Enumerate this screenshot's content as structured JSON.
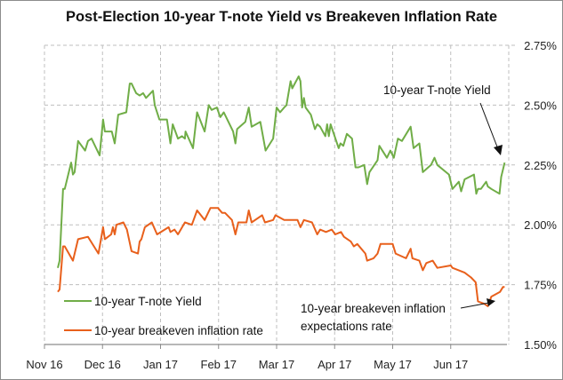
{
  "chart_data": {
    "type": "line",
    "title": "Post-Election 10-year T-note Yield vs Breakeven Inflation Rate",
    "xlabel": "",
    "ylabel": "",
    "x_units": "months since Nov 1, 2016",
    "xlim": [
      0,
      8
    ],
    "ylim": [
      1.5,
      2.75
    ],
    "x_ticks": [
      {
        "value": 0,
        "label": "Nov 16"
      },
      {
        "value": 1,
        "label": "Dec 16"
      },
      {
        "value": 2,
        "label": "Jan 17"
      },
      {
        "value": 3,
        "label": "Feb 17"
      },
      {
        "value": 4,
        "label": "Mar 17"
      },
      {
        "value": 5,
        "label": "Apr 17"
      },
      {
        "value": 6,
        "label": "May 17"
      },
      {
        "value": 7,
        "label": "Jun 17"
      }
    ],
    "y_ticks": [
      {
        "value": 1.5,
        "label": "1.50%"
      },
      {
        "value": 1.75,
        "label": "1.75%"
      },
      {
        "value": 2.0,
        "label": "2.00%"
      },
      {
        "value": 2.25,
        "label": "2.25%"
      },
      {
        "value": 2.5,
        "label": "2.50%"
      },
      {
        "value": 2.75,
        "label": "2.75%"
      }
    ],
    "grid": true,
    "y_axis_position": "right",
    "legend_placement": "bottom-left",
    "series": [
      {
        "name": "10-year T-note Yield",
        "color": "#70ad47",
        "x": [
          0.23,
          0.26,
          0.32,
          0.35,
          0.46,
          0.49,
          0.52,
          0.58,
          0.7,
          0.75,
          0.81,
          0.95,
          1.01,
          1.04,
          1.16,
          1.21,
          1.27,
          1.41,
          1.47,
          1.5,
          1.58,
          1.64,
          1.7,
          1.75,
          1.87,
          1.9,
          1.98,
          2.11,
          2.17,
          2.21,
          2.3,
          2.37,
          2.42,
          2.43,
          2.56,
          2.63,
          2.76,
          2.83,
          2.88,
          2.97,
          3.03,
          3.09,
          3.25,
          3.29,
          3.32,
          3.46,
          3.52,
          3.57,
          3.72,
          3.81,
          3.94,
          4.0,
          4.06,
          4.13,
          4.17,
          4.24,
          4.27,
          4.38,
          4.41,
          4.44,
          4.47,
          4.5,
          4.59,
          4.66,
          4.7,
          4.75,
          4.84,
          4.87,
          4.9,
          4.93,
          5.07,
          5.1,
          5.15,
          5.21,
          5.3,
          5.36,
          5.41,
          5.51,
          5.56,
          5.6,
          5.74,
          5.77,
          5.9,
          5.96,
          6.02,
          6.09,
          6.16,
          6.31,
          6.36,
          6.46,
          6.52,
          6.66,
          6.72,
          6.77,
          6.97,
          7.03,
          7.14,
          7.18,
          7.24,
          7.4,
          7.44,
          7.47,
          7.52,
          7.61,
          7.64,
          7.7,
          7.84,
          7.87,
          7.93
        ],
        "values": [
          1.82,
          1.85,
          2.15,
          2.15,
          2.26,
          2.21,
          2.22,
          2.35,
          2.31,
          2.35,
          2.36,
          2.29,
          2.44,
          2.39,
          2.39,
          2.34,
          2.46,
          2.47,
          2.59,
          2.59,
          2.55,
          2.54,
          2.55,
          2.53,
          2.56,
          2.5,
          2.44,
          2.44,
          2.34,
          2.42,
          2.36,
          2.37,
          2.36,
          2.39,
          2.32,
          2.47,
          2.39,
          2.5,
          2.48,
          2.49,
          2.45,
          2.47,
          2.39,
          2.34,
          2.4,
          2.43,
          2.49,
          2.41,
          2.43,
          2.31,
          2.36,
          2.49,
          2.47,
          2.49,
          2.5,
          2.6,
          2.57,
          2.62,
          2.6,
          2.49,
          2.53,
          2.49,
          2.46,
          2.4,
          2.42,
          2.41,
          2.37,
          2.42,
          2.37,
          2.42,
          2.32,
          2.34,
          2.33,
          2.38,
          2.36,
          2.24,
          2.24,
          2.25,
          2.17,
          2.22,
          2.27,
          2.33,
          2.28,
          2.31,
          2.28,
          2.36,
          2.35,
          2.41,
          2.32,
          2.34,
          2.22,
          2.25,
          2.28,
          2.25,
          2.21,
          2.15,
          2.18,
          2.14,
          2.19,
          2.21,
          2.13,
          2.15,
          2.15,
          2.18,
          2.16,
          2.15,
          2.13,
          2.2,
          2.26
        ]
      },
      {
        "name": "10-year breakeven inflation rate",
        "color": "#e8601c",
        "x": [
          0.23,
          0.26,
          0.32,
          0.35,
          0.49,
          0.58,
          0.75,
          0.93,
          1.01,
          1.04,
          1.15,
          1.18,
          1.21,
          1.24,
          1.36,
          1.42,
          1.5,
          1.61,
          1.64,
          1.67,
          1.73,
          1.85,
          1.94,
          2.14,
          2.17,
          2.24,
          2.3,
          2.42,
          2.54,
          2.63,
          2.76,
          2.86,
          2.99,
          3.06,
          3.11,
          3.23,
          3.29,
          3.34,
          3.48,
          3.52,
          3.57,
          3.75,
          3.8,
          3.94,
          3.98,
          4.13,
          4.21,
          4.36,
          4.41,
          4.47,
          4.61,
          4.7,
          4.75,
          4.85,
          4.95,
          5.01,
          5.11,
          5.16,
          5.28,
          5.33,
          5.39,
          5.53,
          5.56,
          5.67,
          5.74,
          5.79,
          5.87,
          6.0,
          6.05,
          6.23,
          6.31,
          6.34,
          6.46,
          6.52,
          6.58,
          6.69,
          6.77,
          7.0,
          7.03,
          7.24,
          7.35,
          7.43,
          7.47,
          7.58,
          7.64,
          7.7,
          7.85,
          7.9,
          7.93
        ],
        "values": [
          1.72,
          1.73,
          1.91,
          1.91,
          1.85,
          1.94,
          1.95,
          1.88,
          1.99,
          1.94,
          1.96,
          1.99,
          1.96,
          2.0,
          2.01,
          1.98,
          1.89,
          1.88,
          1.93,
          1.94,
          1.99,
          2.01,
          1.96,
          1.99,
          1.97,
          1.98,
          1.96,
          2.01,
          2.0,
          2.06,
          2.02,
          2.07,
          2.07,
          2.05,
          2.05,
          2.02,
          1.96,
          2.01,
          2.01,
          2.06,
          2.01,
          2.04,
          2.01,
          2.02,
          2.04,
          2.02,
          2.02,
          2.02,
          1.99,
          2.02,
          2.01,
          1.96,
          1.98,
          1.97,
          1.98,
          1.96,
          1.97,
          1.95,
          1.93,
          1.91,
          1.92,
          1.88,
          1.85,
          1.86,
          1.88,
          1.92,
          1.92,
          1.92,
          1.88,
          1.86,
          1.9,
          1.86,
          1.85,
          1.81,
          1.84,
          1.85,
          1.82,
          1.83,
          1.82,
          1.8,
          1.78,
          1.76,
          1.68,
          1.67,
          1.66,
          1.7,
          1.72,
          1.74,
          1.74
        ]
      }
    ],
    "annotations": [
      {
        "text": "10-year T-note Yield",
        "target_series": 0
      },
      {
        "text_lines": [
          "10-year breakeven inflation",
          "expectations rate"
        ],
        "target_series": 1
      }
    ]
  }
}
